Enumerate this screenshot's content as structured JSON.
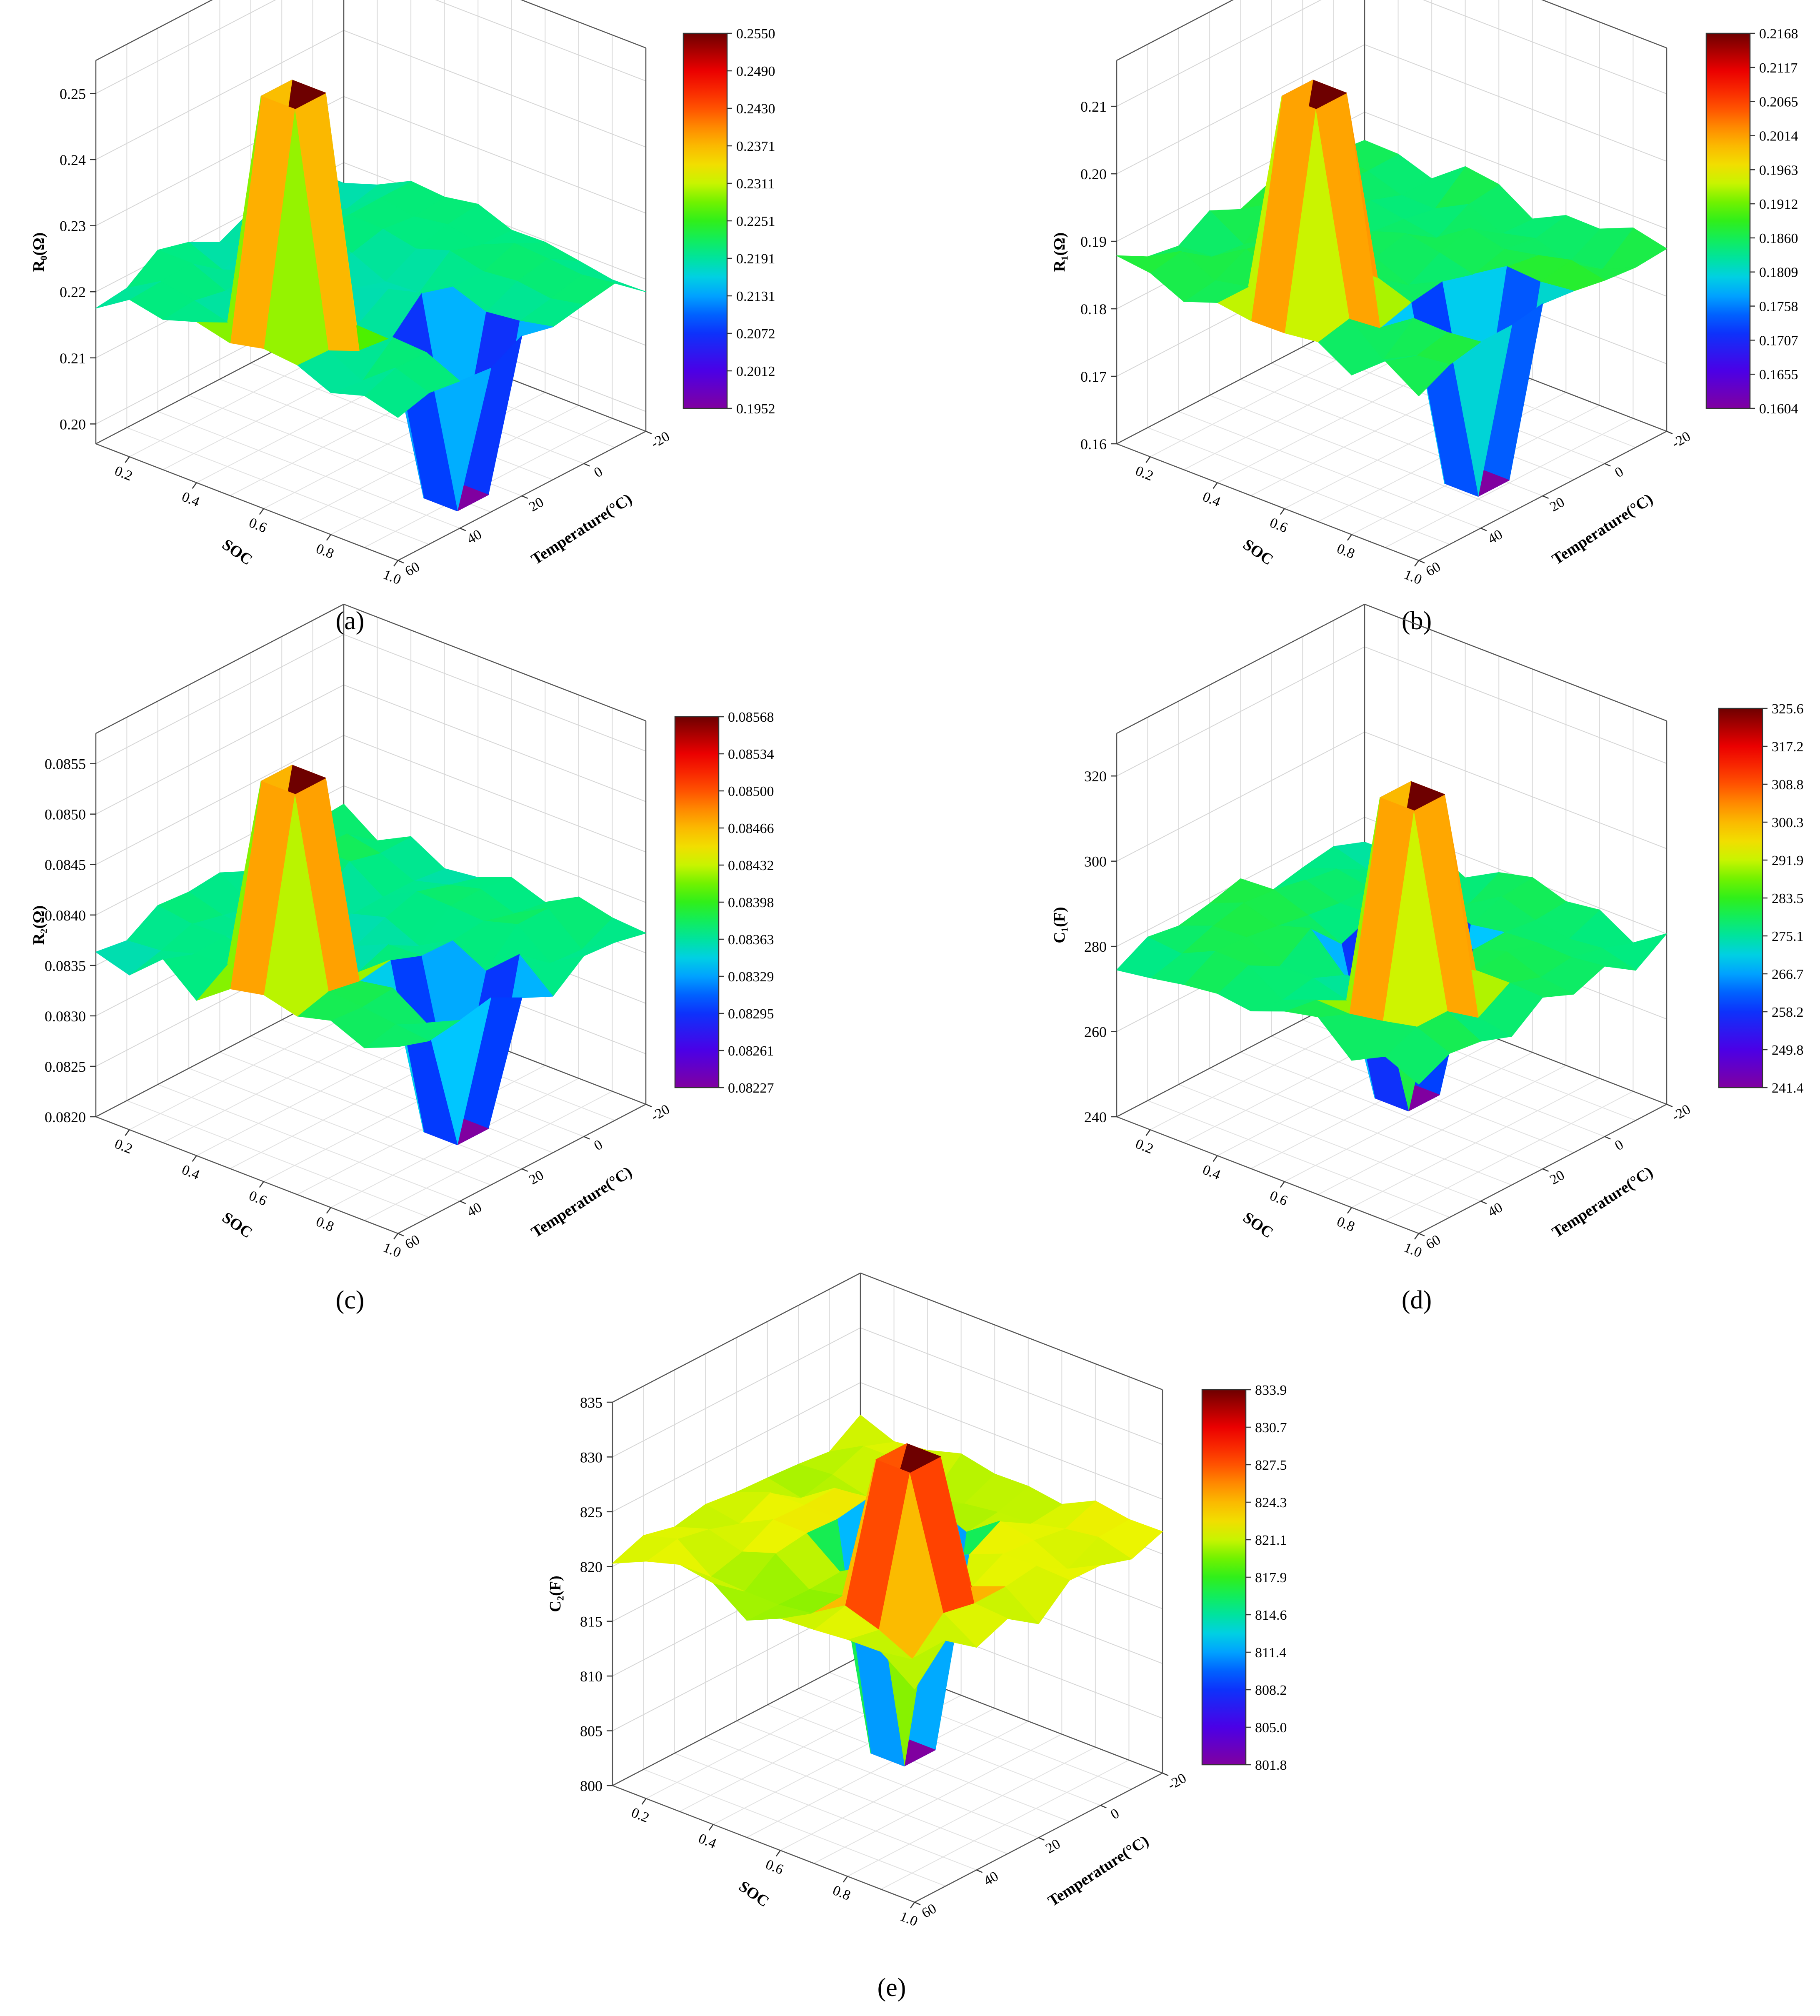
{
  "figure": {
    "panels": [
      {
        "caption": "(a)",
        "z_label": "R₀(Ω)",
        "chart_data": {
          "type": "surface3d",
          "z_ticks": [
            "0.20",
            "0.21",
            "0.22",
            "0.23",
            "0.24",
            "0.25"
          ],
          "zlim": [
            0.197,
            0.255
          ],
          "colorbar_ticks": [
            "0.2550",
            "0.2490",
            "0.2430",
            "0.2371",
            "0.2311",
            "0.2251",
            "0.2191",
            "0.2131",
            "0.2072",
            "0.2012",
            "0.1952"
          ],
          "colorbar_range": [
            0.1952,
            0.255
          ],
          "x": {
            "label": "SOC",
            "ticks": [
              "0.2",
              "0.4",
              "0.6",
              "0.8",
              "1.0"
            ],
            "range": [
              0.1,
              1.0
            ]
          },
          "y": {
            "label": "Temperature(°C)",
            "ticks": [
              "-20",
              "0",
              "20",
              "40",
              "60"
            ],
            "range": [
              -20,
              60
            ]
          },
          "base_level": 0.2195,
          "peak": {
            "soc": 0.55,
            "temp": 45,
            "value": 0.255
          },
          "trough": {
            "soc": 0.85,
            "temp": 25,
            "value": 0.1952
          }
        }
      },
      {
        "caption": "(b)",
        "z_label": "R₁(Ω)",
        "chart_data": {
          "type": "surface3d",
          "z_ticks": [
            "0.16",
            "0.17",
            "0.18",
            "0.19",
            "0.20",
            "0.21"
          ],
          "zlim": [
            0.16,
            0.2168
          ],
          "colorbar_ticks": [
            "0.2168",
            "0.2117",
            "0.2065",
            "0.2014",
            "0.1963",
            "0.1912",
            "0.1860",
            "0.1809",
            "0.1758",
            "0.1707",
            "0.1655",
            "0.1604"
          ],
          "colorbar_range": [
            0.1604,
            0.2168
          ],
          "x": {
            "label": "SOC",
            "ticks": [
              "0.2",
              "0.4",
              "0.6",
              "0.8",
              "1.0"
            ],
            "range": [
              0.1,
              1.0
            ]
          },
          "y": {
            "label": "Temperature(°C)",
            "ticks": [
              "-20",
              "0",
              "20",
              "40",
              "60"
            ],
            "range": [
              -20,
              60
            ]
          },
          "base_level": 0.186,
          "peak": {
            "soc": 0.55,
            "temp": 45,
            "value": 0.2168
          },
          "trough": {
            "soc": 0.85,
            "temp": 25,
            "value": 0.1604
          }
        }
      },
      {
        "caption": "(c)",
        "z_label": "R₂(Ω)",
        "chart_data": {
          "type": "surface3d",
          "z_ticks": [
            "0.0820",
            "0.0825",
            "0.0830",
            "0.0835",
            "0.0840",
            "0.0845",
            "0.0850",
            "0.0855"
          ],
          "zlim": [
            0.082,
            0.0858
          ],
          "colorbar_ticks": [
            "0.08568",
            "0.08534",
            "0.08500",
            "0.08466",
            "0.08432",
            "0.08398",
            "0.08363",
            "0.08329",
            "0.08295",
            "0.08261",
            "0.08227"
          ],
          "colorbar_range": [
            0.08227,
            0.08568
          ],
          "x": {
            "label": "SOC",
            "ticks": [
              "0.2",
              "0.4",
              "0.6",
              "0.8",
              "1.0"
            ],
            "range": [
              0.1,
              1.0
            ]
          },
          "y": {
            "label": "Temperature(°C)",
            "ticks": [
              "-20",
              "0",
              "20",
              "40",
              "60"
            ],
            "range": [
              -20,
              60
            ]
          },
          "base_level": 0.0837,
          "peak": {
            "soc": 0.55,
            "temp": 45,
            "value": 0.08568
          },
          "trough": {
            "soc": 0.85,
            "temp": 25,
            "value": 0.08227
          }
        }
      },
      {
        "caption": "(d)",
        "z_label": "C₁(F)",
        "chart_data": {
          "type": "surface3d",
          "z_ticks": [
            "240",
            "260",
            "280",
            "300",
            "320"
          ],
          "zlim": [
            240,
            330
          ],
          "colorbar_ticks": [
            "325.6",
            "317.2",
            "308.8",
            "300.3",
            "291.9",
            "283.5",
            "275.1",
            "266.7",
            "258.2",
            "249.8",
            "241.4"
          ],
          "colorbar_range": [
            241.4,
            325.6
          ],
          "x": {
            "label": "SOC",
            "ticks": [
              "0.2",
              "0.4",
              "0.6",
              "0.8",
              "1.0"
            ],
            "range": [
              0.1,
              1.0
            ]
          },
          "y": {
            "label": "Temperature(°C)",
            "ticks": [
              "-20",
              "0",
              "20",
              "40",
              "60"
            ],
            "range": [
              -20,
              60
            ]
          },
          "base_level": 278,
          "peak": {
            "soc": 0.75,
            "temp": 35,
            "value": 325.6
          },
          "trough": {
            "soc": 0.55,
            "temp": 15,
            "value": 241.4
          }
        }
      },
      {
        "caption": "(e)",
        "z_label": "C₂(F)",
        "chart_data": {
          "type": "surface3d",
          "z_ticks": [
            "800",
            "805",
            "810",
            "815",
            "820",
            "825",
            "830",
            "835"
          ],
          "zlim": [
            800,
            835
          ],
          "colorbar_ticks": [
            "833.9",
            "830.7",
            "827.5",
            "824.3",
            "821.1",
            "817.9",
            "814.6",
            "811.4",
            "808.2",
            "805.0",
            "801.8"
          ],
          "colorbar_range": [
            801.8,
            833.9
          ],
          "x": {
            "label": "SOC",
            "ticks": [
              "0.2",
              "0.4",
              "0.6",
              "0.8",
              "1.0"
            ],
            "range": [
              0.1,
              1.0
            ]
          },
          "y": {
            "label": "Temperature(°C)",
            "ticks": [
              "-20",
              "0",
              "20",
              "40",
              "60"
            ],
            "range": [
              -20,
              60
            ]
          },
          "base_level": 821,
          "peak": {
            "soc": 0.75,
            "temp": 35,
            "value": 833.9
          },
          "trough": {
            "soc": 0.55,
            "temp": 15,
            "value": 801.8
          }
        }
      }
    ]
  }
}
